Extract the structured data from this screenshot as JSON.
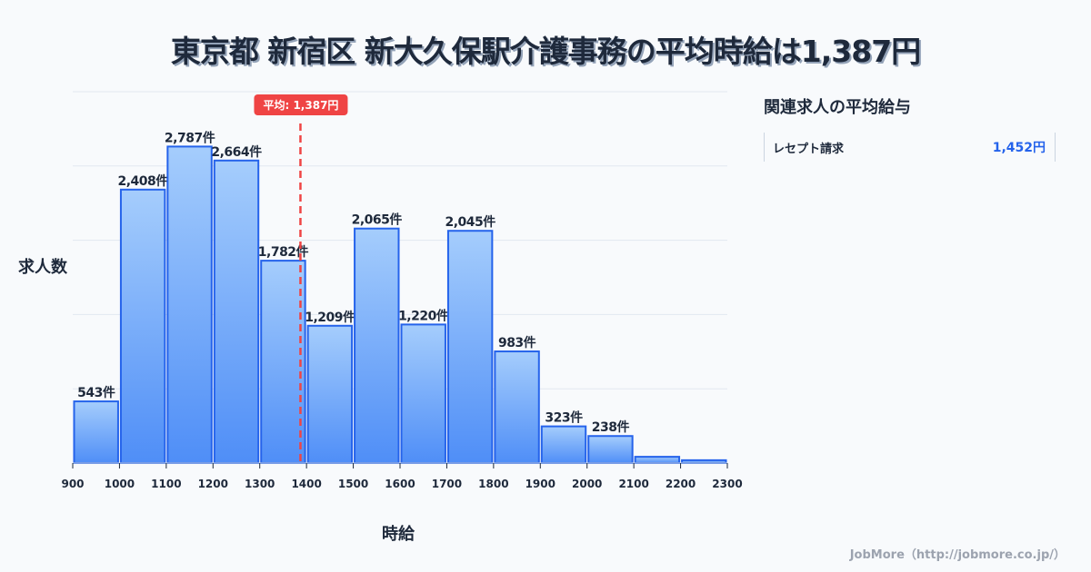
{
  "title": "東京都 新宿区 新大久保駅介護事務の平均時給は1,387円",
  "axis": {
    "ylabel": "求人数",
    "xlabel": "時給"
  },
  "mean_label": "平均: 1,387円",
  "side_panel": {
    "title": "関連求人の平均給与",
    "items": [
      {
        "label": "レセプト請求",
        "value": "1,452円"
      }
    ]
  },
  "footer": "JobMore（http://jobmore.co.jp/）",
  "colors": {
    "bar_top": "#a5cdfc",
    "bar_bottom": "#4f8ef7",
    "bar_border": "#2563eb",
    "mean_line": "#ef4444",
    "grid": "#e2e8f0",
    "text": "#1e293b"
  },
  "chart_data": {
    "type": "bar",
    "title": "東京都 新宿区 新大久保駅介護事務の平均時給は1,387円",
    "xlabel": "時給",
    "ylabel": "求人数",
    "bin_edges": [
      900,
      1000,
      1100,
      1200,
      1300,
      1400,
      1500,
      1600,
      1700,
      1800,
      1900,
      2000,
      2100,
      2200,
      2300
    ],
    "categories": [
      "900-1000",
      "1000-1100",
      "1100-1200",
      "1200-1300",
      "1300-1400",
      "1400-1500",
      "1500-1600",
      "1600-1700",
      "1700-1800",
      "1800-1900",
      "1900-2000",
      "2000-2100",
      "2100-2200",
      "2200-2300"
    ],
    "values": [
      543,
      2408,
      2787,
      2664,
      1782,
      1209,
      2065,
      1220,
      2045,
      983,
      323,
      238,
      55,
      25
    ],
    "labels": [
      "543件",
      "2,408件",
      "2,787件",
      "2,664件",
      "1,782件",
      "1,209件",
      "2,065件",
      "1,220件",
      "2,045件",
      "983件",
      "323件",
      "238件",
      "",
      ""
    ],
    "mean": 1387,
    "ylim": [
      0,
      3270
    ],
    "grid": true,
    "legend": "none"
  }
}
